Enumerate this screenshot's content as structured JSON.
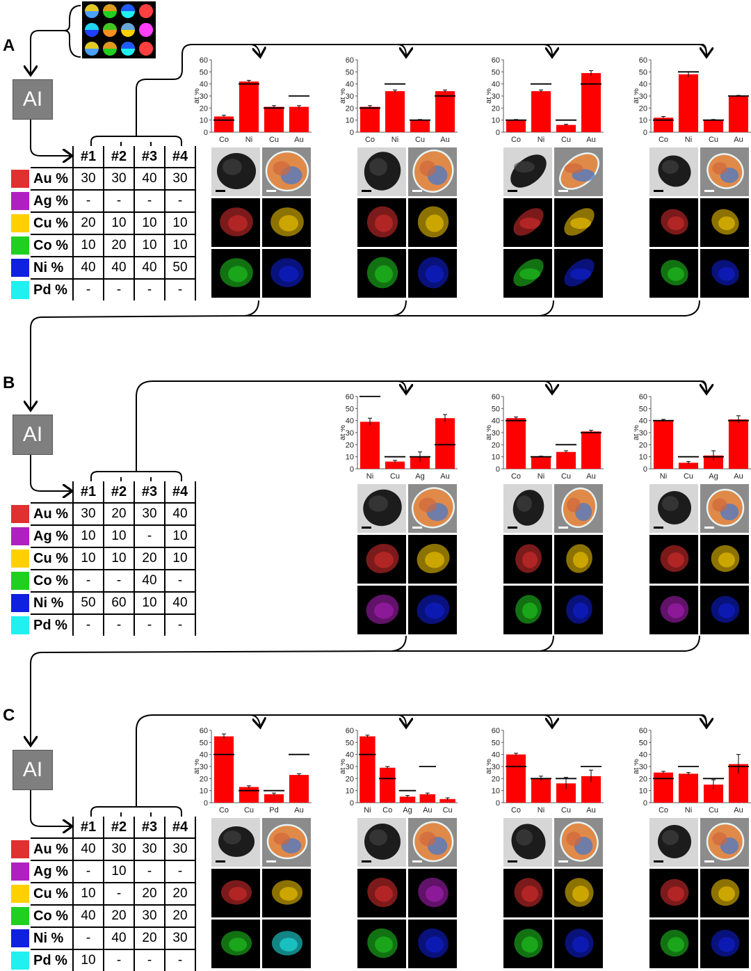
{
  "colors": {
    "Au": "#e03030",
    "Ag": "#b020c0",
    "Cu": "#ffd000",
    "Co": "#20d020",
    "Ni": "#1020e0",
    "Pd": "#20f0f0",
    "bar": "#ff0000"
  },
  "panels": [
    {
      "letter": "A",
      "ai_label": "AI",
      "table": {
        "headers": [
          "#1",
          "#2",
          "#3",
          "#4"
        ],
        "rows": [
          {
            "el": "Au %",
            "key": "Au",
            "vals": [
              "30",
              "30",
              "40",
              "30"
            ]
          },
          {
            "el": "Ag %",
            "key": "Ag",
            "vals": [
              "-",
              "-",
              "-",
              "-"
            ]
          },
          {
            "el": "Cu %",
            "key": "Cu",
            "vals": [
              "20",
              "10",
              "10",
              "10"
            ]
          },
          {
            "el": "Co %",
            "key": "Co",
            "vals": [
              "10",
              "20",
              "10",
              "10"
            ]
          },
          {
            "el": "Ni %",
            "key": "Ni",
            "vals": [
              "40",
              "40",
              "40",
              "50"
            ]
          },
          {
            "el": "Pd %",
            "key": "Pd",
            "vals": [
              "-",
              "-",
              "-",
              "-"
            ]
          }
        ]
      }
    },
    {
      "letter": "B",
      "ai_label": "AI",
      "table": {
        "headers": [
          "#1",
          "#2",
          "#3",
          "#4"
        ],
        "rows": [
          {
            "el": "Au %",
            "key": "Au",
            "vals": [
              "30",
              "20",
              "30",
              "40"
            ]
          },
          {
            "el": "Ag %",
            "key": "Ag",
            "vals": [
              "10",
              "10",
              "-",
              "10"
            ]
          },
          {
            "el": "Cu %",
            "key": "Cu",
            "vals": [
              "10",
              "10",
              "20",
              "10"
            ]
          },
          {
            "el": "Co %",
            "key": "Co",
            "vals": [
              "-",
              "-",
              "40",
              "-"
            ]
          },
          {
            "el": "Ni %",
            "key": "Ni",
            "vals": [
              "50",
              "60",
              "10",
              "40"
            ]
          },
          {
            "el": "Pd %",
            "key": "Pd",
            "vals": [
              "-",
              "-",
              "-",
              "-"
            ]
          }
        ]
      }
    },
    {
      "letter": "C",
      "ai_label": "AI",
      "table": {
        "headers": [
          "#1",
          "#2",
          "#3",
          "#4"
        ],
        "rows": [
          {
            "el": "Au %",
            "key": "Au",
            "vals": [
              "40",
              "30",
              "30",
              "30"
            ]
          },
          {
            "el": "Ag %",
            "key": "Ag",
            "vals": [
              "-",
              "10",
              "-",
              "-"
            ]
          },
          {
            "el": "Cu %",
            "key": "Cu",
            "vals": [
              "10",
              "-",
              "20",
              "20"
            ]
          },
          {
            "el": "Co %",
            "key": "Co",
            "vals": [
              "40",
              "20",
              "30",
              "20"
            ]
          },
          {
            "el": "Ni %",
            "key": "Ni",
            "vals": [
              "-",
              "40",
              "20",
              "30"
            ]
          },
          {
            "el": "Pd %",
            "key": "Pd",
            "vals": [
              "10",
              "-",
              "-",
              "-"
            ]
          }
        ]
      }
    }
  ],
  "chart_data": [
    {
      "panel": "A",
      "sample": "#1",
      "type": "bar",
      "ylabel": "at %",
      "ylim": [
        0,
        60
      ],
      "yticks": [
        0,
        10,
        20,
        30,
        40,
        50,
        60
      ],
      "categories": [
        "Co",
        "Ni",
        "Cu",
        "Au"
      ],
      "values": [
        13,
        42,
        21,
        21
      ],
      "errors": [
        1,
        1,
        1,
        1
      ],
      "targets": [
        10,
        40,
        20,
        30
      ]
    },
    {
      "panel": "A",
      "sample": "#2",
      "type": "bar",
      "ylabel": "at %",
      "ylim": [
        0,
        60
      ],
      "yticks": [
        0,
        10,
        20,
        30,
        40,
        50,
        60
      ],
      "categories": [
        "Co",
        "Ni",
        "Cu",
        "Au"
      ],
      "values": [
        21,
        34,
        10,
        34
      ],
      "errors": [
        1,
        1,
        0.5,
        1
      ],
      "targets": [
        20,
        40,
        10,
        30
      ]
    },
    {
      "panel": "A",
      "sample": "#3",
      "type": "bar",
      "ylabel": "at %",
      "ylim": [
        0,
        60
      ],
      "yticks": [
        0,
        10,
        20,
        30,
        40,
        50,
        60
      ],
      "categories": [
        "Co",
        "Ni",
        "Cu",
        "Au"
      ],
      "values": [
        10,
        34,
        6,
        49
      ],
      "errors": [
        0.5,
        1,
        0.5,
        2
      ],
      "targets": [
        10,
        40,
        10,
        40
      ]
    },
    {
      "panel": "A",
      "sample": "#4",
      "type": "bar",
      "ylabel": "at %",
      "ylim": [
        0,
        60
      ],
      "yticks": [
        0,
        10,
        20,
        30,
        40,
        50,
        60
      ],
      "categories": [
        "Co",
        "Ni",
        "Cu",
        "Au"
      ],
      "values": [
        12,
        48,
        10,
        30
      ],
      "errors": [
        1,
        2,
        0.5,
        0.5
      ],
      "targets": [
        10,
        50,
        10,
        30
      ]
    },
    {
      "panel": "B",
      "sample": "#2",
      "type": "bar",
      "ylabel": "at %",
      "ylim": [
        0,
        60
      ],
      "yticks": [
        0,
        10,
        20,
        30,
        40,
        50,
        60
      ],
      "categories": [
        "Ni",
        "Cu",
        "Ag",
        "Au"
      ],
      "values": [
        39,
        6,
        10,
        42
      ],
      "errors": [
        3,
        1,
        4,
        3
      ],
      "targets": [
        60,
        10,
        10,
        20
      ]
    },
    {
      "panel": "B",
      "sample": "#3",
      "type": "bar",
      "ylabel": "at %",
      "ylim": [
        0,
        60
      ],
      "yticks": [
        0,
        10,
        20,
        30,
        40,
        50,
        60
      ],
      "categories": [
        "Co",
        "Ni",
        "Cu",
        "Au"
      ],
      "values": [
        42,
        10,
        14,
        31
      ],
      "errors": [
        1,
        0.5,
        1,
        1
      ],
      "targets": [
        40,
        10,
        20,
        30
      ]
    },
    {
      "panel": "B",
      "sample": "#4",
      "type": "bar",
      "ylabel": "at %",
      "ylim": [
        0,
        60
      ],
      "yticks": [
        0,
        10,
        20,
        30,
        40,
        50,
        60
      ],
      "categories": [
        "Ni",
        "Cu",
        "Ag",
        "Au"
      ],
      "values": [
        40,
        5,
        11,
        41
      ],
      "errors": [
        1,
        1,
        4,
        3
      ],
      "targets": [
        40,
        10,
        10,
        40
      ]
    },
    {
      "panel": "C",
      "sample": "#1",
      "type": "bar",
      "ylabel": "at %",
      "ylim": [
        0,
        60
      ],
      "yticks": [
        0,
        10,
        20,
        30,
        40,
        50,
        60
      ],
      "categories": [
        "Co",
        "Cu",
        "Pd",
        "Au"
      ],
      "values": [
        55,
        13,
        7,
        23
      ],
      "errors": [
        2,
        1,
        1,
        1
      ],
      "targets": [
        40,
        10,
        10,
        40
      ]
    },
    {
      "panel": "C",
      "sample": "#2",
      "type": "bar",
      "ylabel": "at %",
      "ylim": [
        0,
        60
      ],
      "yticks": [
        0,
        10,
        20,
        30,
        40,
        50,
        60
      ],
      "categories": [
        "Ni",
        "Co",
        "Ag",
        "Au",
        "Cu"
      ],
      "values": [
        55,
        29,
        5,
        7,
        3
      ],
      "errors": [
        1,
        1,
        1,
        1,
        1
      ],
      "targets": [
        40,
        20,
        10,
        30,
        null
      ]
    },
    {
      "panel": "C",
      "sample": "#3",
      "type": "bar",
      "ylabel": "at %",
      "ylim": [
        0,
        60
      ],
      "yticks": [
        0,
        10,
        20,
        30,
        40,
        50,
        60
      ],
      "categories": [
        "Co",
        "Ni",
        "Cu",
        "Au"
      ],
      "values": [
        40,
        20,
        16,
        22
      ],
      "errors": [
        1,
        2,
        5,
        5
      ],
      "targets": [
        30,
        20,
        20,
        30
      ]
    },
    {
      "panel": "C",
      "sample": "#4",
      "type": "bar",
      "ylabel": "at %",
      "ylim": [
        0,
        60
      ],
      "yticks": [
        0,
        10,
        20,
        30,
        40,
        50,
        60
      ],
      "categories": [
        "Co",
        "Ni",
        "Cu",
        "Au"
      ],
      "values": [
        25,
        24,
        15,
        32
      ],
      "errors": [
        1,
        1,
        4,
        8
      ],
      "targets": [
        20,
        30,
        20,
        30
      ]
    }
  ],
  "tiles": [
    [
      "haadf",
      "overlay",
      "Au",
      "Cu",
      "Co",
      "Ni"
    ],
    [
      "haadf",
      "overlay",
      "Au",
      "Cu",
      "Co",
      "Ni"
    ],
    [
      "haadf",
      "overlay",
      "Au",
      "Cu",
      "Co",
      "Ni"
    ],
    [
      "haadf",
      "overlay",
      "Au",
      "Cu",
      "Co",
      "Ni"
    ],
    [
      "haadf",
      "overlay",
      "Au",
      "Cu",
      "Ag",
      "Ni"
    ],
    [
      "haadf",
      "overlay",
      "Au",
      "Cu",
      "Co",
      "Ni"
    ],
    [
      "haadf",
      "overlay",
      "Au",
      "Cu",
      "Ag",
      "Ni"
    ],
    [
      "haadf",
      "overlay",
      "Au",
      "Cu",
      "Co",
      "Pd"
    ],
    [
      "haadf",
      "overlay",
      "Au",
      "Ag",
      "Co",
      "Ni"
    ],
    [
      "haadf",
      "overlay",
      "Au",
      "Cu",
      "Co",
      "Ni"
    ],
    [
      "haadf",
      "overlay",
      "Au",
      "Cu",
      "Co",
      "Ni"
    ]
  ]
}
